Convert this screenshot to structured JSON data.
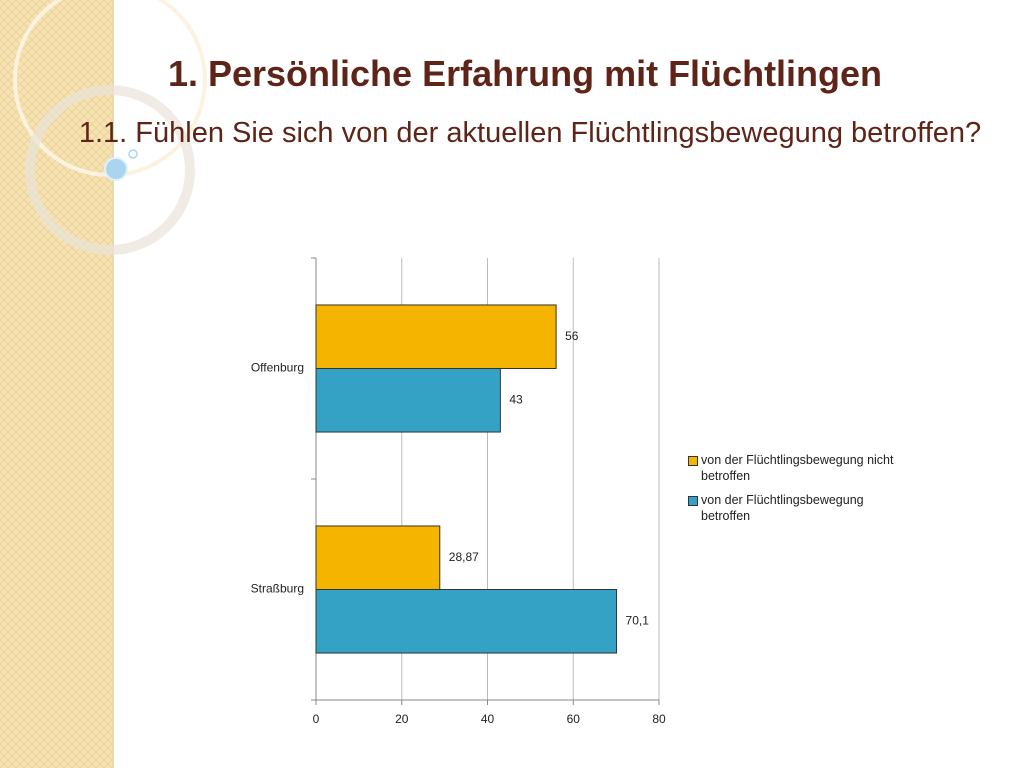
{
  "title": "1. Persönliche Erfahrung mit Flüchtlingen",
  "subtitle": "1.1. Fühlen Sie sich von der aktuellen Flüchtlingsbewegung betroffen?",
  "chart_data": {
    "type": "hbar",
    "categories": [
      "Offenburg",
      "Straßburg"
    ],
    "series": [
      {
        "name": "von der Flüchtlingsbewegung nicht betroffen",
        "color": "#f5b400",
        "values": [
          56,
          28.87
        ],
        "value_labels": [
          "56",
          "28,87"
        ]
      },
      {
        "name": "von der Flüchtlingsbewegung betroffen",
        "color": "#33a2c4",
        "values": [
          43,
          70.1
        ],
        "value_labels": [
          "43",
          "70,1"
        ]
      }
    ],
    "xlim": [
      0,
      80
    ],
    "xticks": [
      0,
      20,
      40,
      60,
      80
    ],
    "grid": true,
    "legend": "right"
  }
}
